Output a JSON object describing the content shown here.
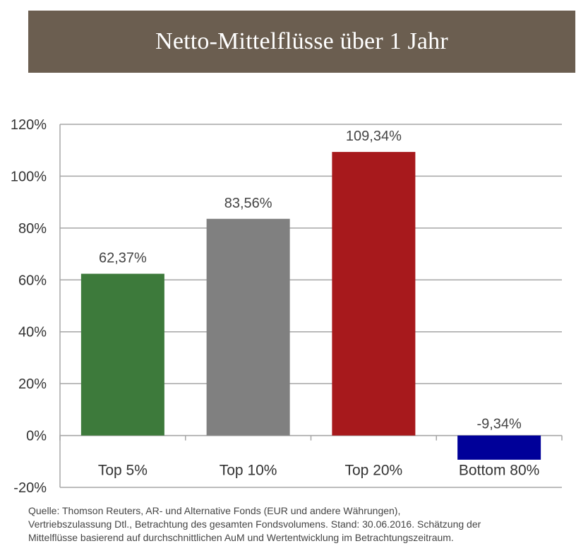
{
  "header": {
    "title": "Netto-Mittelflüsse über 1 Jahr"
  },
  "chart_data": {
    "type": "bar",
    "title": "Netto-Mittelflüsse über 1 Jahr",
    "categories": [
      "Top 5%",
      "Top 10%",
      "Top 20%",
      "Bottom 80%"
    ],
    "values": [
      62.37,
      83.56,
      109.34,
      -9.34
    ],
    "value_labels": [
      "62,37%",
      "83,56%",
      "109,34%",
      "-9,34%"
    ],
    "colors": [
      "#3d7a3b",
      "#808080",
      "#a7191c",
      "#000099"
    ],
    "ylim": [
      -20,
      120
    ],
    "yticks": [
      120,
      100,
      80,
      60,
      40,
      20,
      0,
      -20
    ],
    "ytick_labels": [
      "120%",
      "100%",
      "80%",
      "60%",
      "40%",
      "20%",
      "0%",
      "-20%"
    ],
    "grid": true,
    "legend": "none"
  },
  "footer": {
    "source_lines": [
      "Quelle: Thomson Reuters, AR- und Alternative Fonds (EUR und andere Währungen),",
      "Vertriebszulassung  Dtl., Betrachtung des gesamten Fondsvolumens. Stand: 30.06.2016. Schätzung der",
      "Mittelflüsse basierend auf durchschnittlichen AuM und Wertentwicklung im Betrachtungszeitraum."
    ]
  }
}
